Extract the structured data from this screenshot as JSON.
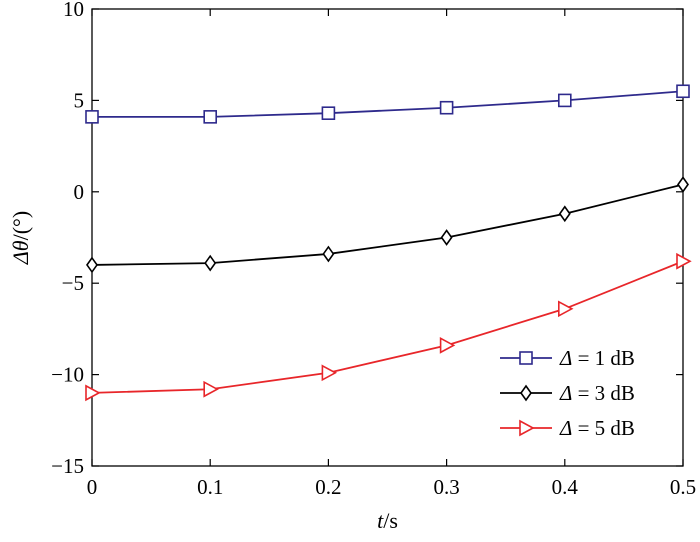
{
  "chart_data": {
    "type": "line",
    "title": "",
    "xlabel": {
      "var": "t",
      "unit": "/s"
    },
    "ylabel": {
      "var": "Δθ",
      "unit": "/(°)"
    },
    "xlim": [
      0,
      0.5
    ],
    "ylim": [
      -15,
      10
    ],
    "xticks": [
      0,
      0.1,
      0.2,
      0.3,
      0.4,
      0.5
    ],
    "xtick_labels": [
      "0",
      "0.1",
      "0.2",
      "0.3",
      "0.4",
      "0.5"
    ],
    "yticks": [
      -15,
      -10,
      -5,
      0,
      5,
      10
    ],
    "ytick_labels": [
      "−15",
      "−10",
      "−5",
      "0",
      "5",
      "10"
    ],
    "grid": false,
    "legend_position": "lower-right",
    "x": [
      0,
      0.1,
      0.2,
      0.3,
      0.4,
      0.5
    ],
    "series": [
      {
        "name": "Δ = 1 dB",
        "sym": "Δ",
        "rest": " = 1 dB",
        "color": "#2e2a8c",
        "marker": "square",
        "values": [
          4.1,
          4.1,
          4.3,
          4.6,
          5.0,
          5.5
        ]
      },
      {
        "name": "Δ = 3 dB",
        "sym": "Δ",
        "rest": " = 3 dB",
        "color": "#000000",
        "marker": "diamond",
        "values": [
          -4.0,
          -3.9,
          -3.4,
          -2.5,
          -1.2,
          0.4
        ]
      },
      {
        "name": "Δ = 5 dB",
        "sym": "Δ",
        "rest": " = 5 dB",
        "color": "#e8262a",
        "marker": "triangle-right",
        "values": [
          -11.0,
          -10.8,
          -9.9,
          -8.4,
          -6.4,
          -3.8
        ]
      }
    ]
  }
}
